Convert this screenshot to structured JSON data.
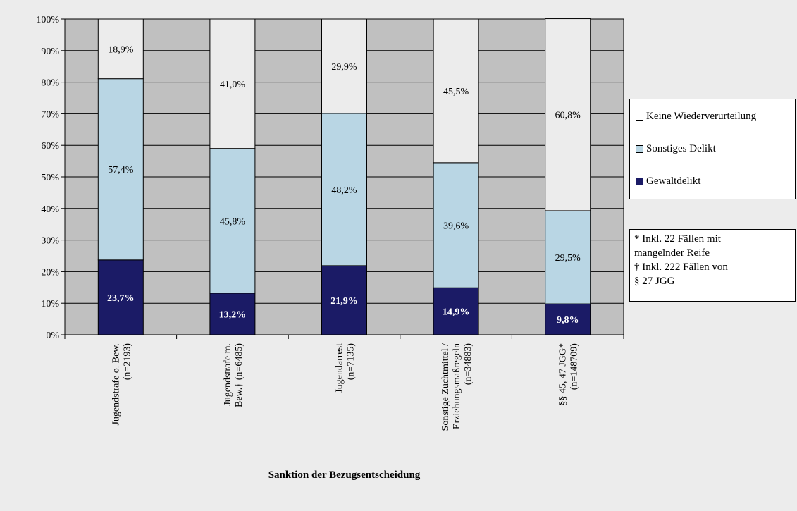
{
  "chart_data": {
    "type": "bar",
    "stacked": true,
    "percent": true,
    "xlabel": "Sanktion der Bezugsentscheidung",
    "ylabel": "",
    "ylim": [
      0,
      100
    ],
    "y_ticks": [
      "0%",
      "10%",
      "20%",
      "30%",
      "40%",
      "50%",
      "60%",
      "70%",
      "80%",
      "90%",
      "100%"
    ],
    "grid": true,
    "legend_position": "right",
    "categories": [
      [
        "Jugendstrafe o. Bew.",
        "(n=2193)"
      ],
      [
        "Jugendstrafe m.",
        "Bew.† (n=6485)"
      ],
      [
        "Jugendarrest",
        "(n=7135)"
      ],
      [
        "Sonstige Zuchtmittel /",
        "Erziehungsmaßregeln",
        "(n=34883)"
      ],
      [
        "§§ 45, 47 JGG*",
        "(n=148709)"
      ]
    ],
    "series": [
      {
        "name": "Gewaltdelikt",
        "color": "#1b1b66",
        "label_color": "#ffffff",
        "values": [
          23.7,
          13.2,
          21.9,
          14.9,
          9.8
        ],
        "labels": [
          "23,7%",
          "13,2%",
          "21,9%",
          "14,9%",
          "9,8%"
        ]
      },
      {
        "name": "Sonstiges Delikt",
        "color": "#b9d6e4",
        "label_color": "#000000",
        "values": [
          57.4,
          45.8,
          48.2,
          39.6,
          29.5
        ],
        "labels": [
          "57,4%",
          "45,8%",
          "48,2%",
          "39,6%",
          "29,5%"
        ]
      },
      {
        "name": "Keine Wiederverurteilung",
        "color": "#ececec",
        "label_color": "#000000",
        "values": [
          18.9,
          41.0,
          29.9,
          45.5,
          60.8
        ],
        "labels": [
          "18,9%",
          "41,0%",
          "29,9%",
          "45,5%",
          "60,8%"
        ]
      }
    ],
    "legend_order": [
      "Keine Wiederverurteilung",
      "Sonstiges Delikt",
      "Gewaltdelikt"
    ],
    "notes": [
      "* Inkl. 22 Fällen mit",
      "mangelnder Reife",
      "† Inkl. 222 Fällen von",
      "§ 27 JGG"
    ],
    "plot_background": "#c0c0c0"
  }
}
